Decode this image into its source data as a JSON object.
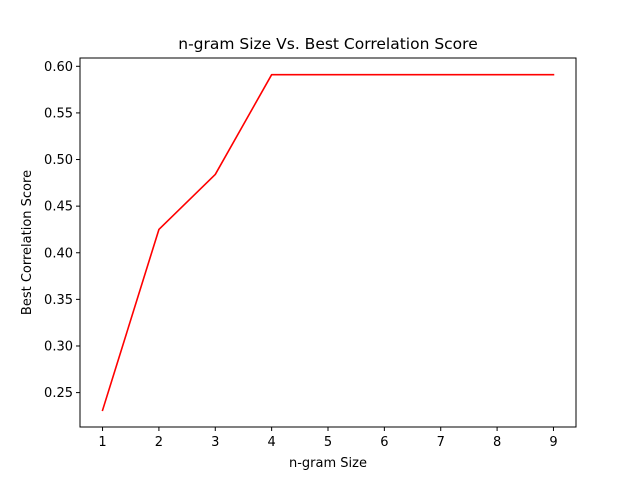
{
  "chart_data": {
    "type": "line",
    "title": "n-gram Size Vs. Best Correlation Score",
    "xlabel": "n-gram Size",
    "ylabel": "Best Correlation Score",
    "x": [
      1,
      2,
      3,
      4,
      5,
      6,
      7,
      8,
      9
    ],
    "series": [
      {
        "values": [
          0.231,
          0.425,
          0.484,
          0.591,
          0.591,
          0.591,
          0.591,
          0.591,
          0.591
        ],
        "color": "#ff0000"
      }
    ],
    "xticks": [
      "1",
      "2",
      "3",
      "4",
      "5",
      "6",
      "7",
      "8",
      "9"
    ],
    "yticks": [
      "0.25",
      "0.30",
      "0.35",
      "0.40",
      "0.45",
      "0.50",
      "0.55",
      "0.60"
    ],
    "xlim": [
      0.6,
      9.4
    ],
    "ylim": [
      0.2131,
      0.6089
    ],
    "grid": false,
    "legend": "none"
  }
}
